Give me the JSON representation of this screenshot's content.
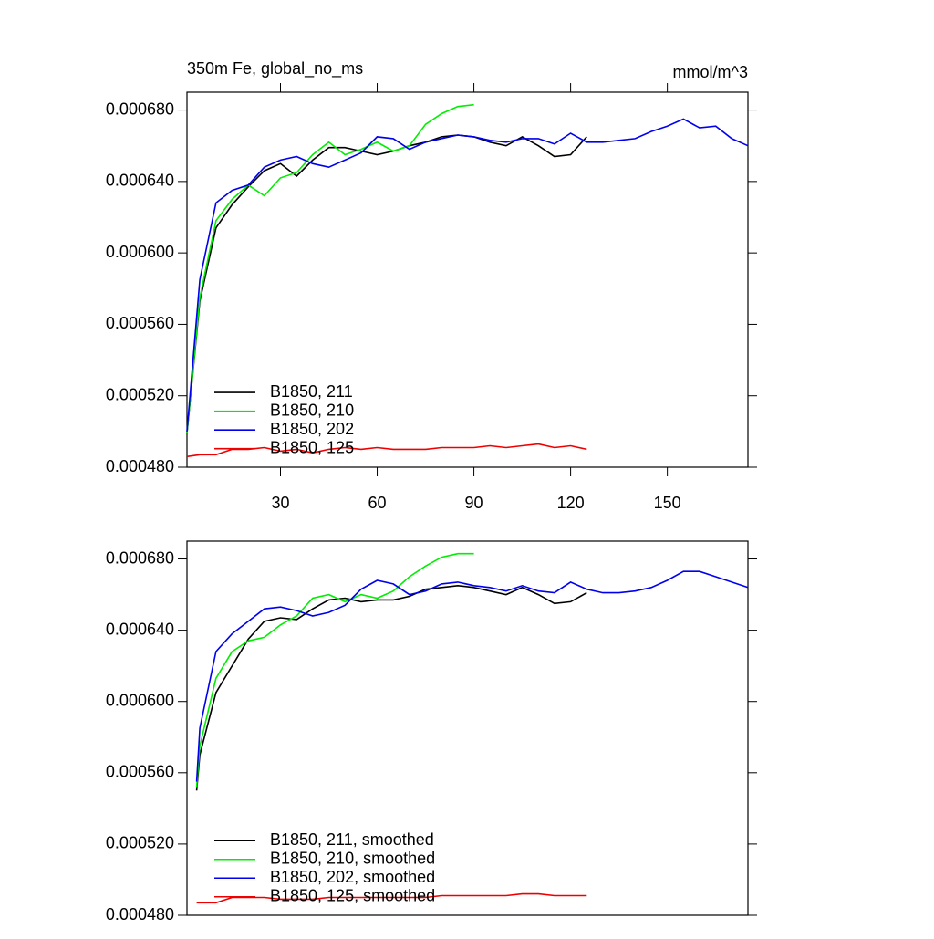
{
  "chart_data": [
    {
      "type": "line",
      "title": "350m Fe, global_no_ms",
      "units": "mmol/m^3",
      "x": [
        1,
        5,
        10,
        15,
        20,
        25,
        30,
        35,
        40,
        45,
        50,
        55,
        60,
        65,
        70,
        75,
        80,
        85,
        90,
        95,
        100,
        105,
        110,
        115,
        120,
        125,
        130,
        135,
        140,
        145,
        150,
        155,
        160,
        165,
        170,
        175
      ],
      "series": [
        {
          "name": "B1850, 211",
          "color": "#000000",
          "values": [
            0.000499,
            0.000573,
            0.000614,
            0.000627,
            0.000637,
            0.000646,
            0.00065,
            0.000643,
            0.000652,
            0.000659,
            0.000659,
            0.000657,
            0.000655,
            0.000657,
            0.00066,
            0.000662,
            0.000665,
            0.000666,
            0.000665,
            0.000662,
            0.00066,
            0.000665,
            0.00066,
            0.000654,
            0.000655,
            0.000665,
            null,
            null,
            null,
            null,
            null,
            null,
            null,
            null,
            null,
            null
          ]
        },
        {
          "name": "B1850, 210",
          "color": "#00ee00",
          "values": [
            0.000499,
            0.000575,
            0.000618,
            0.00063,
            0.000638,
            0.000632,
            0.000642,
            0.000645,
            0.000655,
            0.000662,
            0.000655,
            0.000658,
            0.000662,
            0.000657,
            0.00066,
            0.000672,
            0.000678,
            0.000682,
            0.000683,
            null,
            null,
            null,
            null,
            null,
            null,
            null,
            null,
            null,
            null,
            null,
            null,
            null,
            null,
            null,
            null,
            null
          ]
        },
        {
          "name": "B1850, 202",
          "color": "#0000ee",
          "values": [
            0.0005,
            0.000585,
            0.000628,
            0.000635,
            0.000638,
            0.000648,
            0.000652,
            0.000654,
            0.00065,
            0.000648,
            0.000652,
            0.000656,
            0.000665,
            0.000664,
            0.000658,
            0.000662,
            0.000664,
            0.000666,
            0.000665,
            0.000663,
            0.000662,
            0.000664,
            0.000664,
            0.000661,
            0.000667,
            0.000662,
            0.000662,
            0.000663,
            0.000664,
            0.000668,
            0.000671,
            0.000675,
            0.00067,
            0.000671,
            0.000664,
            0.00066
          ]
        },
        {
          "name": "B1850, 125",
          "color": "#ee0000",
          "values": [
            0.000486,
            0.000487,
            0.000487,
            0.00049,
            0.00049,
            0.000491,
            0.000489,
            0.00049,
            0.000488,
            0.00049,
            0.000491,
            0.00049,
            0.000491,
            0.00049,
            0.00049,
            0.00049,
            0.000491,
            0.000491,
            0.000491,
            0.000492,
            0.000491,
            0.000492,
            0.000493,
            0.000491,
            0.000492,
            0.00049,
            null,
            null,
            null,
            null,
            null,
            null,
            null,
            null,
            null,
            null
          ]
        }
      ],
      "xlim": [
        1,
        175
      ],
      "xticks": [
        30,
        60,
        90,
        120,
        150
      ],
      "ylim": [
        0.00048,
        0.00069
      ],
      "yticks": [
        {
          "value": 0.00048,
          "label": "0.000480"
        },
        {
          "value": 0.00052,
          "label": "0.000520"
        },
        {
          "value": 0.00056,
          "label": "0.000560"
        },
        {
          "value": 0.0006,
          "label": "0.000600"
        },
        {
          "value": 0.00064,
          "label": "0.000640"
        },
        {
          "value": 0.00068,
          "label": "0.000680"
        }
      ],
      "legend": "lower left"
    },
    {
      "type": "line",
      "x": [
        4,
        5,
        10,
        15,
        20,
        25,
        30,
        35,
        40,
        45,
        50,
        55,
        60,
        65,
        70,
        75,
        80,
        85,
        90,
        95,
        100,
        105,
        110,
        115,
        120,
        125,
        130,
        135,
        140,
        145,
        150,
        155,
        160,
        165,
        170,
        175
      ],
      "series": [
        {
          "name": "B1850, 211, smoothed",
          "color": "#000000",
          "values": [
            0.00055,
            0.00057,
            0.000605,
            0.00062,
            0.000635,
            0.000645,
            0.000647,
            0.000646,
            0.000652,
            0.000657,
            0.000658,
            0.000656,
            0.000657,
            0.000657,
            0.000659,
            0.000663,
            0.000664,
            0.000665,
            0.000664,
            0.000662,
            0.00066,
            0.000664,
            0.00066,
            0.000655,
            0.000656,
            0.000661,
            null,
            null,
            null,
            null,
            null,
            null,
            null,
            null,
            null,
            null
          ]
        },
        {
          "name": "B1850, 210, smoothed",
          "color": "#00ee00",
          "values": [
            0.000552,
            0.000575,
            0.000613,
            0.000628,
            0.000634,
            0.000636,
            0.000643,
            0.000648,
            0.000658,
            0.00066,
            0.000656,
            0.00066,
            0.000658,
            0.000662,
            0.00067,
            0.000676,
            0.000681,
            0.000683,
            0.000683,
            null,
            null,
            null,
            null,
            null,
            null,
            null,
            null,
            null,
            null,
            null,
            null,
            null,
            null,
            null,
            null,
            null
          ]
        },
        {
          "name": "B1850, 202, smoothed",
          "color": "#0000ee",
          "values": [
            0.000555,
            0.000585,
            0.000628,
            0.000638,
            0.000645,
            0.000652,
            0.000653,
            0.000651,
            0.000648,
            0.00065,
            0.000654,
            0.000663,
            0.000668,
            0.000666,
            0.00066,
            0.000662,
            0.000666,
            0.000667,
            0.000665,
            0.000664,
            0.000662,
            0.000665,
            0.000662,
            0.000661,
            0.000667,
            0.000663,
            0.000661,
            0.000661,
            0.000662,
            0.000664,
            0.000668,
            0.000673,
            0.000673,
            0.00067,
            0.000667,
            0.000664
          ]
        },
        {
          "name": "B1850, 125, smoothed",
          "color": "#ee0000",
          "values": [
            0.000487,
            0.000487,
            0.000487,
            0.00049,
            0.00049,
            0.00049,
            0.000489,
            0.000489,
            0.000489,
            0.00049,
            0.00049,
            0.00049,
            0.00049,
            0.00049,
            0.00049,
            0.00049,
            0.000491,
            0.000491,
            0.000491,
            0.000491,
            0.000491,
            0.000492,
            0.000492,
            0.000491,
            0.000491,
            0.000491,
            null,
            null,
            null,
            null,
            null,
            null,
            null,
            null,
            null,
            null
          ]
        }
      ],
      "xlim": [
        1,
        175
      ],
      "ylim": [
        0.00048,
        0.00069
      ],
      "yticks": [
        {
          "value": 0.00048,
          "label": "0.000480"
        },
        {
          "value": 0.00052,
          "label": "0.000520"
        },
        {
          "value": 0.00056,
          "label": "0.000560"
        },
        {
          "value": 0.0006,
          "label": "0.000600"
        },
        {
          "value": 0.00064,
          "label": "0.000640"
        },
        {
          "value": 0.00068,
          "label": "0.000680"
        }
      ],
      "legend": "lower left"
    }
  ]
}
